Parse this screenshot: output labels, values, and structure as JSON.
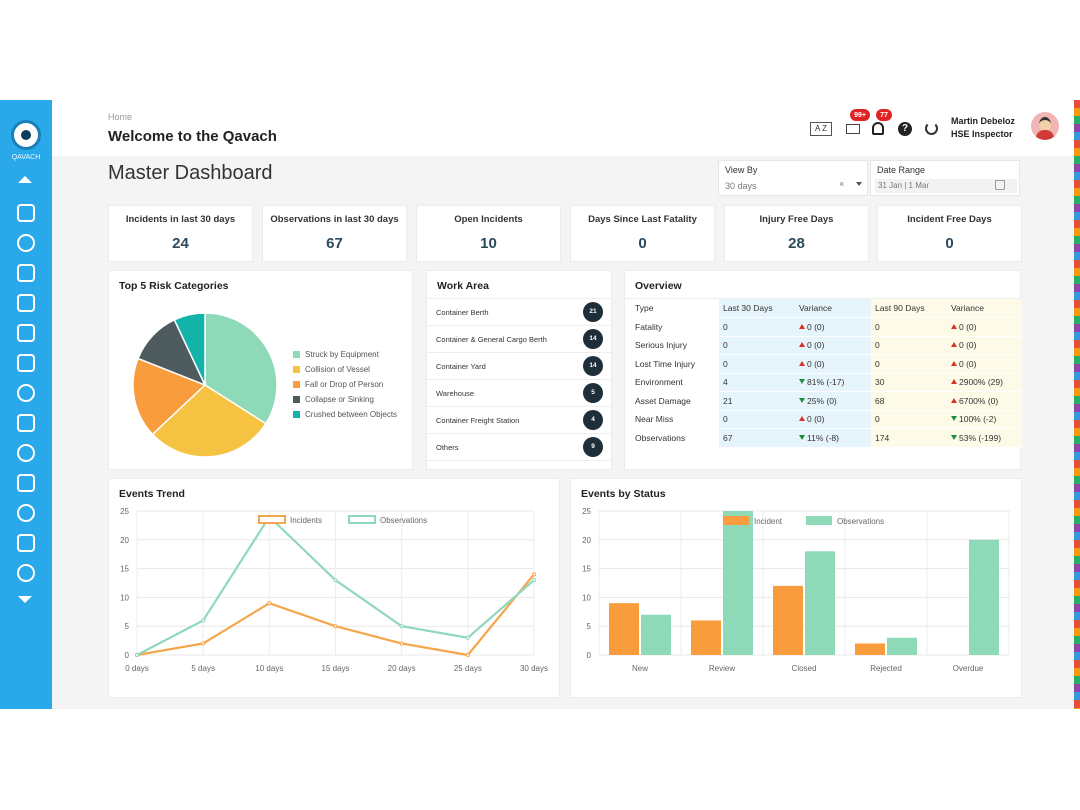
{
  "sidebar": {
    "logo_text": "QAVACH",
    "icons": [
      "shield-icon",
      "search-icon",
      "document-icon",
      "card-icon",
      "report-icon",
      "checklist-icon",
      "gear-icon",
      "settings-icon",
      "cog-icon",
      "table-icon",
      "hand-icon",
      "clipboard-icon",
      "sun-icon"
    ]
  },
  "header": {
    "breadcrumb": "Home",
    "welcome": "Welcome to the Qavach",
    "lang_label": "A Z",
    "mail_badge": "99+",
    "bell_badge": "77",
    "help_label": "?",
    "user_name": "Martin Debeloz",
    "user_role": "HSE Inspector"
  },
  "page_title": "Master Dashboard",
  "filters": {
    "view_by_label": "View By",
    "view_by_value": "30 days",
    "clear_label": "×",
    "date_range_label": "Date Range",
    "date_range_value": "31 Jan | 1 Mar"
  },
  "stats": [
    {
      "label": "Incidents in last 30 days",
      "value": "24"
    },
    {
      "label": "Observations in last 30 days",
      "value": "67"
    },
    {
      "label": "Open Incidents",
      "value": "10"
    },
    {
      "label": "Days Since Last Fatality",
      "value": "0"
    },
    {
      "label": "Injury Free Days",
      "value": "28"
    },
    {
      "label": "Incident Free Days",
      "value": "0"
    }
  ],
  "risk": {
    "title": "Top 5 Risk Categories",
    "legend": [
      {
        "label": "Struck by Equipment",
        "color": "#8dd9b8"
      },
      {
        "label": "Collision of Vessel",
        "color": "#f5c242"
      },
      {
        "label": "Fall or Drop of Person",
        "color": "#f89c3d"
      },
      {
        "label": "Collapse or Sinking",
        "color": "#4d5a5e"
      },
      {
        "label": "Crushed between Objects",
        "color": "#12b3a8"
      }
    ]
  },
  "work_area": {
    "title": "Work Area",
    "rows": [
      {
        "name": "Container Berth",
        "count": "21"
      },
      {
        "name": "Container & General Cargo Berth",
        "count": "14"
      },
      {
        "name": "Container Yard",
        "count": "14"
      },
      {
        "name": "Warehouse",
        "count": "5"
      },
      {
        "name": "Container Freight Station",
        "count": "4"
      },
      {
        "name": "Others",
        "count": "9"
      }
    ]
  },
  "overview": {
    "title": "Overview",
    "headers": [
      "Type",
      "Last 30 Days",
      "Variance",
      "Last 90 Days",
      "Variance"
    ],
    "rows": [
      {
        "type": "Fatality",
        "l30": "0",
        "v30": "0 (0)",
        "v30_dir": "up",
        "l90": "0",
        "v90": "0 (0)",
        "v90_dir": "up"
      },
      {
        "type": "Serious Injury",
        "l30": "0",
        "v30": "0 (0)",
        "v30_dir": "up",
        "l90": "0",
        "v90": "0 (0)",
        "v90_dir": "up"
      },
      {
        "type": "Lost Time Injury",
        "l30": "0",
        "v30": "0 (0)",
        "v30_dir": "up",
        "l90": "0",
        "v90": "0 (0)",
        "v90_dir": "up"
      },
      {
        "type": "Environment",
        "l30": "4",
        "v30": "81% (-17)",
        "v30_dir": "down",
        "l90": "30",
        "v90": "2900% (29)",
        "v90_dir": "up"
      },
      {
        "type": "Asset Damage",
        "l30": "21",
        "v30": "25% (0)",
        "v30_dir": "down",
        "l90": "68",
        "v90": "6700% (0)",
        "v90_dir": "up"
      },
      {
        "type": "Near Miss",
        "l30": "0",
        "v30": "0 (0)",
        "v30_dir": "up",
        "l90": "0",
        "v90": "100% (-2)",
        "v90_dir": "down"
      },
      {
        "type": "Observations",
        "l30": "67",
        "v30": "11% (-8)",
        "v30_dir": "down",
        "l90": "174",
        "v90": "53% (-199)",
        "v90_dir": "down"
      }
    ]
  },
  "trend": {
    "title": "Events Trend"
  },
  "status": {
    "title": "Events by Status"
  },
  "chart_data": [
    {
      "type": "pie",
      "title": "Top 5 Risk Categories",
      "categories": [
        "Struck by Equipment",
        "Collision of Vessel",
        "Fall or Drop of Person",
        "Collapse or Sinking",
        "Crushed between Objects"
      ],
      "values": [
        34,
        29,
        18,
        12,
        7
      ],
      "colors": [
        "#8dd9b8",
        "#f5c242",
        "#f89c3d",
        "#4d5a5e",
        "#12b3a8"
      ],
      "legend": "right"
    },
    {
      "type": "line",
      "title": "Events Trend",
      "categories": [
        "0 days",
        "5 days",
        "10 days",
        "15 days",
        "20 days",
        "25 days",
        "30 days"
      ],
      "series": [
        {
          "name": "Incidents",
          "values": [
            0,
            2,
            9,
            5,
            2,
            0,
            14
          ],
          "color": "#f5a54a"
        },
        {
          "name": "Observations",
          "values": [
            0,
            6,
            24,
            13,
            5,
            3,
            13
          ],
          "color": "#8fd8be"
        }
      ],
      "ylim": [
        0,
        25
      ],
      "yticks": [
        0,
        5,
        10,
        15,
        20,
        25
      ],
      "legend": "top",
      "grid": true
    },
    {
      "type": "bar",
      "title": "Events by Status",
      "categories": [
        "New",
        "Review",
        "Closed",
        "Rejected",
        "Overdue"
      ],
      "series": [
        {
          "name": "Incident",
          "values": [
            9,
            6,
            12,
            2,
            0
          ],
          "color": "#f89c3d"
        },
        {
          "name": "Observations",
          "values": [
            7,
            25,
            18,
            3,
            20
          ],
          "color": "#8dd9b8"
        }
      ],
      "ylim": [
        0,
        25
      ],
      "yticks": [
        0,
        5,
        10,
        15,
        20,
        25
      ],
      "legend": "top",
      "grid": true
    }
  ]
}
